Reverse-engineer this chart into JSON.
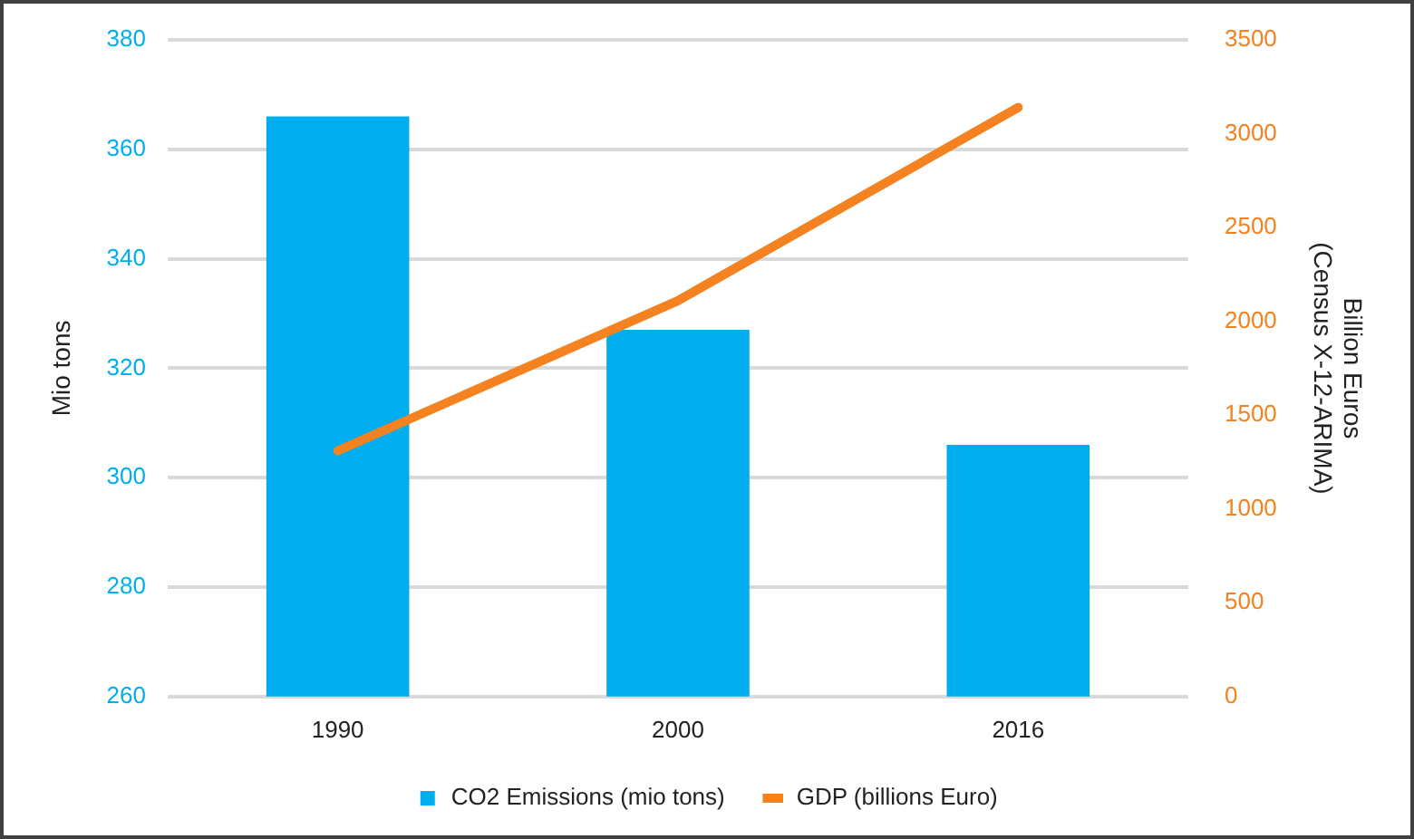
{
  "chart_data": {
    "type": "bar",
    "categories": [
      "1990",
      "2000",
      "2016"
    ],
    "ylabel": "Mio tons",
    "y2label": "Billion Euros\n(Census X-12-ARIMA)",
    "ylim": [
      260,
      380
    ],
    "yticks": [
      260,
      280,
      300,
      320,
      340,
      360,
      380
    ],
    "y2lim": [
      0,
      3500
    ],
    "y2ticks": [
      0,
      500,
      1000,
      1500,
      2000,
      2500,
      3000,
      3500
    ],
    "grid": "y",
    "legend": "bottom",
    "series": [
      {
        "name": "CO2 Emissions (mio tons)",
        "color": "#00aeef",
        "values": [
          366,
          327,
          306
        ]
      },
      {
        "name": "GDP (billions Euro)",
        "type": "line",
        "color": "#f58220",
        "axis": "y2",
        "marker": "none",
        "values": [
          1310,
          2110,
          3140
        ]
      }
    ]
  }
}
